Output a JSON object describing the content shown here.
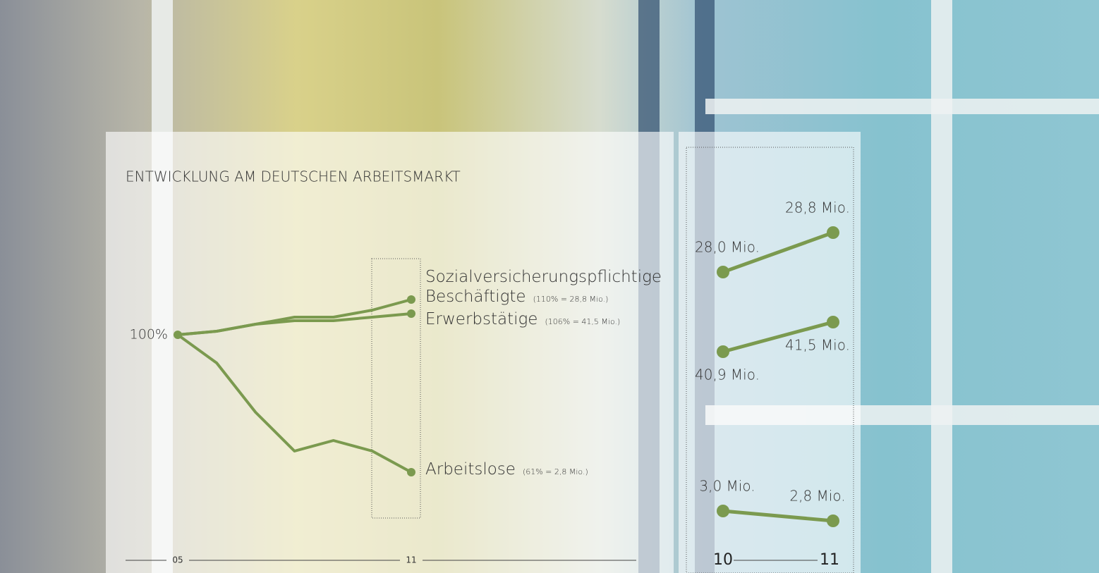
{
  "chart_data": [
    {
      "type": "line",
      "title": "ENTWICKLUNG AM DEUTSCHEN ARBEITSMARKT",
      "categories": [
        "05",
        null,
        null,
        null,
        null,
        null,
        "11"
      ],
      "ylim": [
        55,
        115
      ],
      "series": [
        {
          "name": "Sozialversicherungspflichtige Beschäftigte",
          "note": "(110% = 28,8 Mio.)",
          "color": "#7b9a4f",
          "values": [
            100,
            101,
            103,
            105,
            105,
            107,
            110
          ],
          "value_labels": [
            "100%",
            null,
            null,
            null,
            null,
            null,
            null
          ]
        },
        {
          "name": "Erwerbstätige",
          "note": "(106% = 41,5 Mio.)",
          "color": "#7b9a4f",
          "values": [
            100,
            101,
            103,
            104,
            104,
            105,
            106
          ]
        },
        {
          "name": "Arbeitslose",
          "note": "(61% = 2,8 Mio.)",
          "color": "#7b9a4f",
          "values": [
            100,
            92,
            78,
            67,
            70,
            67,
            61
          ]
        }
      ]
    },
    {
      "type": "slope",
      "categories": [
        "10",
        "11"
      ],
      "series": [
        {
          "color": "#7b9a4f",
          "values": [
            28.0,
            28.8
          ],
          "value_labels": [
            "28,0 Mio.",
            "28,8 Mio."
          ]
        },
        {
          "color": "#7b9a4f",
          "values": [
            40.9,
            41.5
          ],
          "value_labels": [
            "40,9 Mio.",
            "41,5 Mio."
          ]
        },
        {
          "color": "#7b9a4f",
          "values": [
            3.0,
            2.8
          ],
          "value_labels": [
            "3,0 Mio.",
            "2,8 Mio."
          ]
        }
      ]
    }
  ]
}
